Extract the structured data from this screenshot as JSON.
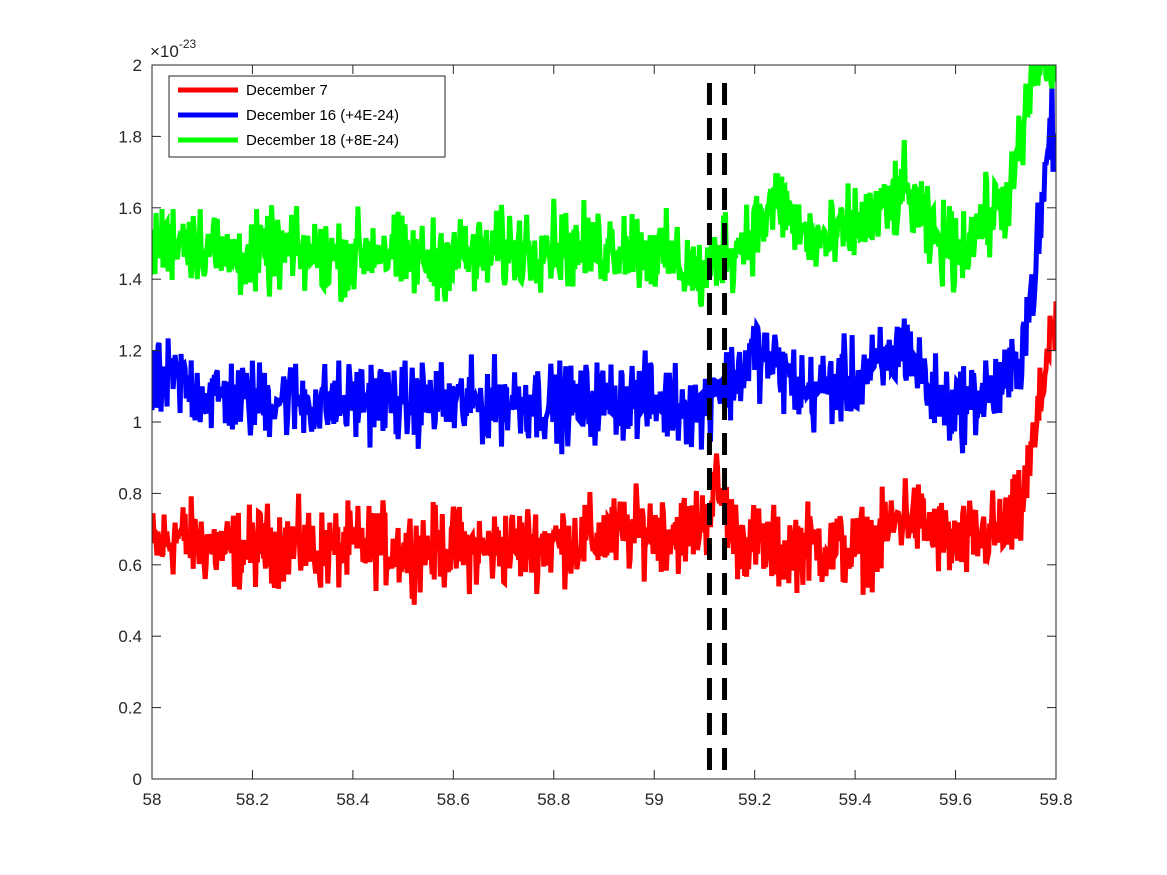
{
  "chart_data": {
    "type": "line",
    "title": "",
    "xlabel": "",
    "ylabel": "",
    "xlim": [
      58,
      59.8
    ],
    "ylim": [
      0,
      2
    ],
    "y_multiplier": {
      "base": "×10",
      "exponent": "-23"
    },
    "x_ticks": [
      "58",
      "58.2",
      "58.4",
      "58.6",
      "58.8",
      "59",
      "59.2",
      "59.4",
      "59.6",
      "59.8"
    ],
    "y_ticks": [
      "0",
      "0.2",
      "0.4",
      "0.6",
      "0.8",
      "1",
      "1.2",
      "1.4",
      "1.6",
      "1.8",
      "2"
    ],
    "x_tick_values": [
      58,
      58.2,
      58.4,
      58.6,
      58.8,
      59,
      59.2,
      59.4,
      59.6,
      59.8
    ],
    "y_tick_values": [
      0,
      0.2,
      0.4,
      0.6,
      0.8,
      1,
      1.2,
      1.4,
      1.6,
      1.8,
      2
    ],
    "grid": false,
    "legend_position": "top-left",
    "vertical_lines": [
      {
        "x": 59.11,
        "style": "dashed",
        "color": "#000000"
      },
      {
        "x": 59.14,
        "style": "dashed",
        "color": "#000000"
      }
    ],
    "series": [
      {
        "name": "December 7",
        "color": "#ff0000",
        "x": [
          58.0,
          58.05,
          58.1,
          58.15,
          58.2,
          58.25,
          58.3,
          58.35,
          58.4,
          58.45,
          58.5,
          58.55,
          58.6,
          58.65,
          58.7,
          58.75,
          58.8,
          58.85,
          58.9,
          58.95,
          59.0,
          59.05,
          59.1,
          59.12,
          59.14,
          59.16,
          59.2,
          59.25,
          59.3,
          59.35,
          59.4,
          59.45,
          59.5,
          59.55,
          59.6,
          59.65,
          59.7,
          59.73,
          59.75,
          59.77,
          59.79,
          59.8
        ],
        "y": [
          0.65,
          0.68,
          0.66,
          0.64,
          0.65,
          0.66,
          0.65,
          0.64,
          0.65,
          0.66,
          0.64,
          0.65,
          0.65,
          0.64,
          0.65,
          0.66,
          0.66,
          0.67,
          0.68,
          0.69,
          0.7,
          0.69,
          0.72,
          0.82,
          0.78,
          0.68,
          0.66,
          0.64,
          0.66,
          0.65,
          0.64,
          0.67,
          0.75,
          0.7,
          0.65,
          0.68,
          0.7,
          0.75,
          0.9,
          1.05,
          1.3,
          1.2
        ]
      },
      {
        "name": "December 16 (+4E-24)",
        "color": "#0000ff",
        "x": [
          58.0,
          58.05,
          58.1,
          58.15,
          58.2,
          58.25,
          58.3,
          58.35,
          58.4,
          58.45,
          58.5,
          58.55,
          58.6,
          58.65,
          58.7,
          58.75,
          58.8,
          58.85,
          58.9,
          58.95,
          59.0,
          59.05,
          59.1,
          59.12,
          59.14,
          59.16,
          59.2,
          59.25,
          59.3,
          59.35,
          59.4,
          59.45,
          59.5,
          59.55,
          59.6,
          59.65,
          59.7,
          59.73,
          59.75,
          59.77,
          59.79,
          59.8
        ],
        "y": [
          1.1,
          1.12,
          1.08,
          1.07,
          1.06,
          1.07,
          1.06,
          1.05,
          1.06,
          1.07,
          1.05,
          1.06,
          1.05,
          1.05,
          1.06,
          1.06,
          1.05,
          1.05,
          1.06,
          1.07,
          1.06,
          1.05,
          1.03,
          1.12,
          1.1,
          1.12,
          1.2,
          1.15,
          1.08,
          1.1,
          1.12,
          1.15,
          1.22,
          1.08,
          1.04,
          1.08,
          1.1,
          1.2,
          1.35,
          1.55,
          1.85,
          1.75
        ]
      },
      {
        "name": "December 18 (+8E-24)",
        "color": "#00ff00",
        "x": [
          58.0,
          58.05,
          58.1,
          58.15,
          58.2,
          58.25,
          58.3,
          58.35,
          58.4,
          58.45,
          58.5,
          58.55,
          58.6,
          58.65,
          58.7,
          58.75,
          58.8,
          58.85,
          58.9,
          58.95,
          59.0,
          59.05,
          59.1,
          59.12,
          59.14,
          59.16,
          59.2,
          59.25,
          59.3,
          59.35,
          59.4,
          59.45,
          59.5,
          59.55,
          59.6,
          59.65,
          59.7,
          59.73,
          59.75,
          59.77,
          59.79,
          59.8
        ],
        "y": [
          1.48,
          1.52,
          1.5,
          1.47,
          1.46,
          1.48,
          1.47,
          1.46,
          1.47,
          1.49,
          1.46,
          1.45,
          1.47,
          1.46,
          1.48,
          1.49,
          1.5,
          1.48,
          1.49,
          1.5,
          1.47,
          1.45,
          1.4,
          1.45,
          1.5,
          1.48,
          1.55,
          1.62,
          1.52,
          1.5,
          1.55,
          1.58,
          1.65,
          1.52,
          1.48,
          1.55,
          1.62,
          1.75,
          1.95,
          2.0,
          2.0,
          2.0
        ]
      }
    ]
  }
}
